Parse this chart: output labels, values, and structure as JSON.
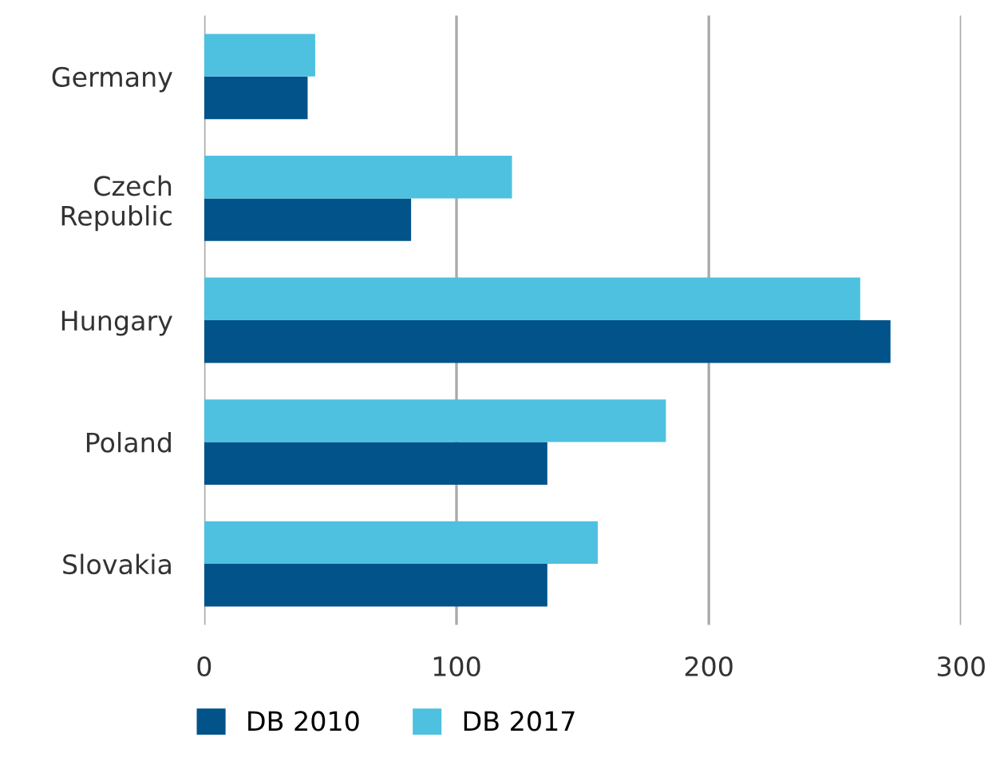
{
  "chart_data": {
    "type": "bar",
    "orientation": "horizontal",
    "categories": [
      "Germany",
      "Czech\nRepublic",
      "Hungary",
      "Poland",
      "Slovakia"
    ],
    "series": [
      {
        "name": "DB 2010",
        "color": "#01538a",
        "values": [
          41,
          82,
          272,
          136,
          136
        ]
      },
      {
        "name": "DB 2017",
        "color": "#4fc1e0",
        "values": [
          44,
          122,
          260,
          183,
          156
        ]
      }
    ],
    "xlim": [
      0,
      300
    ],
    "xticks": [
      0,
      100,
      200,
      300
    ],
    "grid": "x",
    "legend": "bottom"
  }
}
